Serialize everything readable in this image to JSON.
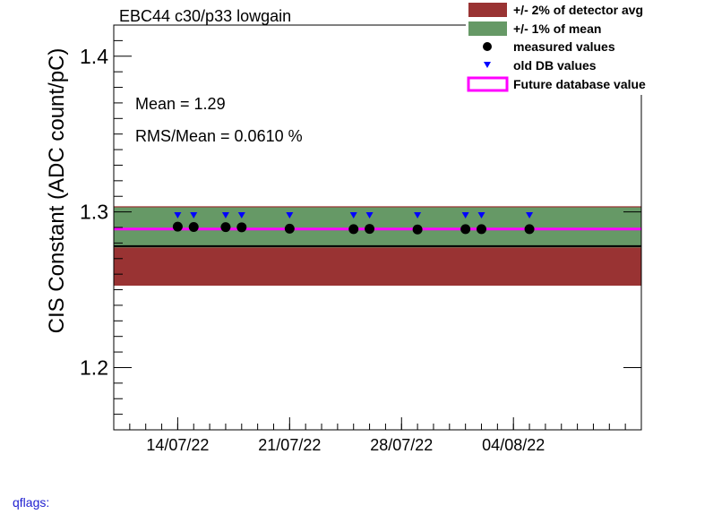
{
  "chart_data": {
    "type": "scatter",
    "title": "EBC44 c30/p33 lowgain",
    "ylabel": "CIS Constant (ADC count/pC)",
    "xlabel": "",
    "x_axis": "date",
    "xlim": [
      "2022-07-10",
      "2022-08-12"
    ],
    "ylim": [
      1.16,
      1.42
    ],
    "y_ticks": [
      1.2,
      1.3,
      1.4
    ],
    "y_tick_labels": [
      "1.2",
      "1.3",
      "1.4"
    ],
    "x_ticks": [
      "2022-07-14",
      "2022-07-21",
      "2022-07-28",
      "2022-08-04"
    ],
    "x_tick_labels": [
      "14/07/22",
      "21/07/22",
      "28/07/22",
      "04/08/22"
    ],
    "detector_avg": 1.278,
    "detector_band": [
      1.2526,
      1.3036
    ],
    "mean_band": [
      1.2771,
      1.3029
    ],
    "future_value": 1.289,
    "stats": {
      "mean_text": "Mean = 1.29",
      "rms_text": "RMS/Mean = 0.0610 %"
    },
    "series": [
      {
        "name": "measured values",
        "marker": "circle",
        "color": "#000000",
        "x": [
          "2022-07-14",
          "2022-07-15",
          "2022-07-17",
          "2022-07-18",
          "2022-07-21",
          "2022-07-25",
          "2022-07-26",
          "2022-07-29",
          "2022-08-01",
          "2022-08-02",
          "2022-08-05"
        ],
        "y": [
          1.2905,
          1.2903,
          1.2902,
          1.2901,
          1.2892,
          1.2889,
          1.2891,
          1.2887,
          1.2889,
          1.2889,
          1.2889
        ]
      },
      {
        "name": "old DB values",
        "marker": "triangle-down",
        "color": "#0000ff",
        "x": [
          "2022-07-14",
          "2022-07-15",
          "2022-07-17",
          "2022-07-18",
          "2022-07-21",
          "2022-07-25",
          "2022-07-26",
          "2022-07-29",
          "2022-08-01",
          "2022-08-02",
          "2022-08-05"
        ],
        "y": [
          1.2975,
          1.2975,
          1.2975,
          1.2975,
          1.2975,
          1.2975,
          1.2975,
          1.2975,
          1.2975,
          1.2975,
          1.2975
        ]
      }
    ],
    "legend": {
      "placement": "top-right",
      "entries": [
        {
          "label": "+/- 2% of detector avg",
          "color": "#993333"
        },
        {
          "label": "+/- 1% of mean",
          "color": "#669966"
        },
        {
          "label": "measured values",
          "color": "#000000"
        },
        {
          "label": "old DB values",
          "color": "#0000ff"
        },
        {
          "label": "Future database value",
          "color": "#ff00ff"
        }
      ]
    },
    "colors": {
      "detector_band": "#993333",
      "mean_band": "#669966",
      "future_line": "#ff00ff",
      "avg_line": "#000000",
      "measured": "#000000",
      "old_db": "#0000ff"
    }
  },
  "footer": {
    "qflags_label": "qflags:"
  }
}
